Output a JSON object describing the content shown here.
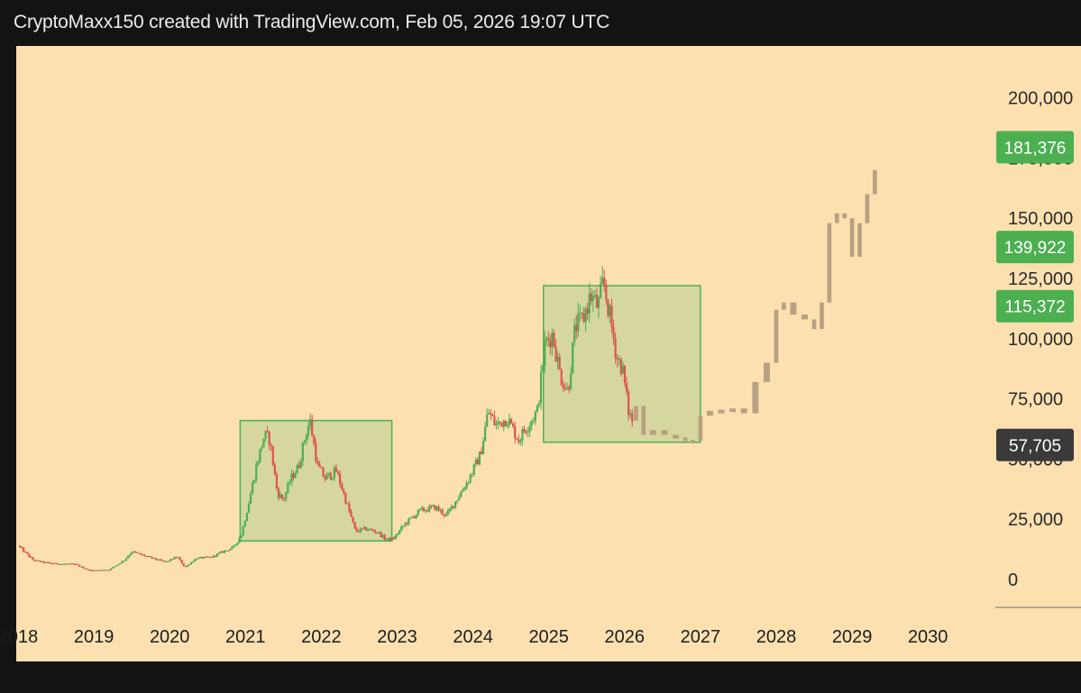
{
  "header": {
    "text": "CryptoMaxx150 created with TradingView.com, Feb 05, 2026 19:07 UTC"
  },
  "colors": {
    "background": "#fce0b0",
    "up_candle": "#4caf50",
    "down_candle": "#e05252",
    "projection": "#b8a082",
    "box_fill": "#c8d49a",
    "box_stroke": "#4caf50",
    "badge_green": "#4caf50",
    "badge_dark": "#3a3a3a"
  },
  "chart_data": {
    "type": "candlestick",
    "y_axis": {
      "ticks": [
        0,
        25000,
        50000,
        75000,
        100000,
        125000,
        150000,
        175000,
        200000
      ],
      "tick_labels": [
        "0",
        "25,000",
        "50,000",
        "75,000",
        "100,000",
        "125,000",
        "150,000",
        "175,000",
        "200,000"
      ]
    },
    "x_axis": {
      "ticks": [
        2018,
        2019,
        2020,
        2021,
        2022,
        2023,
        2024,
        2025,
        2026,
        2027,
        2028,
        2029,
        2030
      ],
      "tick_labels": [
        "2018",
        "2019",
        "2020",
        "2021",
        "2022",
        "2023",
        "2024",
        "2025",
        "2026",
        "2027",
        "2028",
        "2029",
        "2030"
      ]
    },
    "price_badges": [
      {
        "label": "181,376",
        "value": 181376,
        "style": "green"
      },
      {
        "label": "139,922",
        "value": 139922,
        "style": "green"
      },
      {
        "label": "115,372",
        "value": 115372,
        "style": "green"
      },
      {
        "label": "57,705",
        "value": 57705,
        "style": "dark"
      }
    ],
    "boxes": [
      {
        "x_start": 2020.93,
        "x_end": 2022.93,
        "y_low": 16000,
        "y_high": 66000
      },
      {
        "x_start": 2024.93,
        "x_end": 2027.0,
        "y_low": 57000,
        "y_high": 122000
      }
    ],
    "price_path": [
      [
        2018.0,
        14000
      ],
      [
        2018.1,
        11000
      ],
      [
        2018.2,
        8000
      ],
      [
        2018.35,
        7000
      ],
      [
        2018.5,
        6500
      ],
      [
        2018.75,
        6300
      ],
      [
        2018.95,
        3700
      ],
      [
        2019.2,
        4000
      ],
      [
        2019.4,
        8000
      ],
      [
        2019.5,
        11500
      ],
      [
        2019.65,
        10000
      ],
      [
        2019.8,
        8500
      ],
      [
        2019.95,
        7200
      ],
      [
        2020.1,
        9500
      ],
      [
        2020.2,
        5000
      ],
      [
        2020.35,
        8800
      ],
      [
        2020.55,
        9200
      ],
      [
        2020.7,
        11500
      ],
      [
        2020.85,
        13500
      ],
      [
        2020.95,
        19000
      ],
      [
        2021.05,
        33000
      ],
      [
        2021.15,
        48000
      ],
      [
        2021.25,
        60000
      ],
      [
        2021.32,
        58000
      ],
      [
        2021.42,
        36000
      ],
      [
        2021.5,
        33000
      ],
      [
        2021.6,
        42000
      ],
      [
        2021.7,
        47000
      ],
      [
        2021.8,
        61000
      ],
      [
        2021.85,
        66000
      ],
      [
        2021.95,
        47000
      ],
      [
        2022.05,
        42000
      ],
      [
        2022.2,
        45000
      ],
      [
        2022.35,
        30000
      ],
      [
        2022.45,
        20000
      ],
      [
        2022.6,
        21000
      ],
      [
        2022.75,
        19500
      ],
      [
        2022.85,
        16500
      ],
      [
        2022.95,
        16800
      ],
      [
        2023.1,
        23000
      ],
      [
        2023.3,
        28500
      ],
      [
        2023.5,
        30000
      ],
      [
        2023.65,
        26500
      ],
      [
        2023.8,
        34000
      ],
      [
        2023.95,
        42000
      ],
      [
        2024.1,
        52000
      ],
      [
        2024.2,
        70000
      ],
      [
        2024.3,
        64000
      ],
      [
        2024.45,
        67000
      ],
      [
        2024.6,
        58000
      ],
      [
        2024.7,
        63000
      ],
      [
        2024.85,
        70000
      ],
      [
        2024.95,
        98000
      ],
      [
        2025.05,
        102000
      ],
      [
        2025.15,
        85000
      ],
      [
        2025.25,
        78000
      ],
      [
        2025.35,
        105000
      ],
      [
        2025.45,
        108000
      ],
      [
        2025.55,
        118000
      ],
      [
        2025.65,
        113000
      ],
      [
        2025.72,
        124000
      ],
      [
        2025.8,
        110000
      ],
      [
        2025.9,
        92000
      ],
      [
        2025.97,
        88000
      ],
      [
        2026.05,
        70000
      ],
      [
        2026.1,
        66000
      ]
    ],
    "projection_path": [
      [
        2026.1,
        66000
      ],
      [
        2026.2,
        72000
      ],
      [
        2026.3,
        60000
      ],
      [
        2026.45,
        62000
      ],
      [
        2026.6,
        60000
      ],
      [
        2026.75,
        59000
      ],
      [
        2026.85,
        58000
      ],
      [
        2026.95,
        57705
      ],
      [
        2027.05,
        68000
      ],
      [
        2027.2,
        70000
      ],
      [
        2027.35,
        70500
      ],
      [
        2027.5,
        71000
      ],
      [
        2027.65,
        69000
      ],
      [
        2027.8,
        82000
      ],
      [
        2027.95,
        90000
      ],
      [
        2028.05,
        112000
      ],
      [
        2028.15,
        115000
      ],
      [
        2028.3,
        110000
      ],
      [
        2028.45,
        108000
      ],
      [
        2028.55,
        104000
      ],
      [
        2028.65,
        115000
      ],
      [
        2028.75,
        148000
      ],
      [
        2028.85,
        152000
      ],
      [
        2028.95,
        150000
      ],
      [
        2029.05,
        134000
      ],
      [
        2029.15,
        148000
      ],
      [
        2029.25,
        160000
      ],
      [
        2029.35,
        170000
      ]
    ]
  }
}
